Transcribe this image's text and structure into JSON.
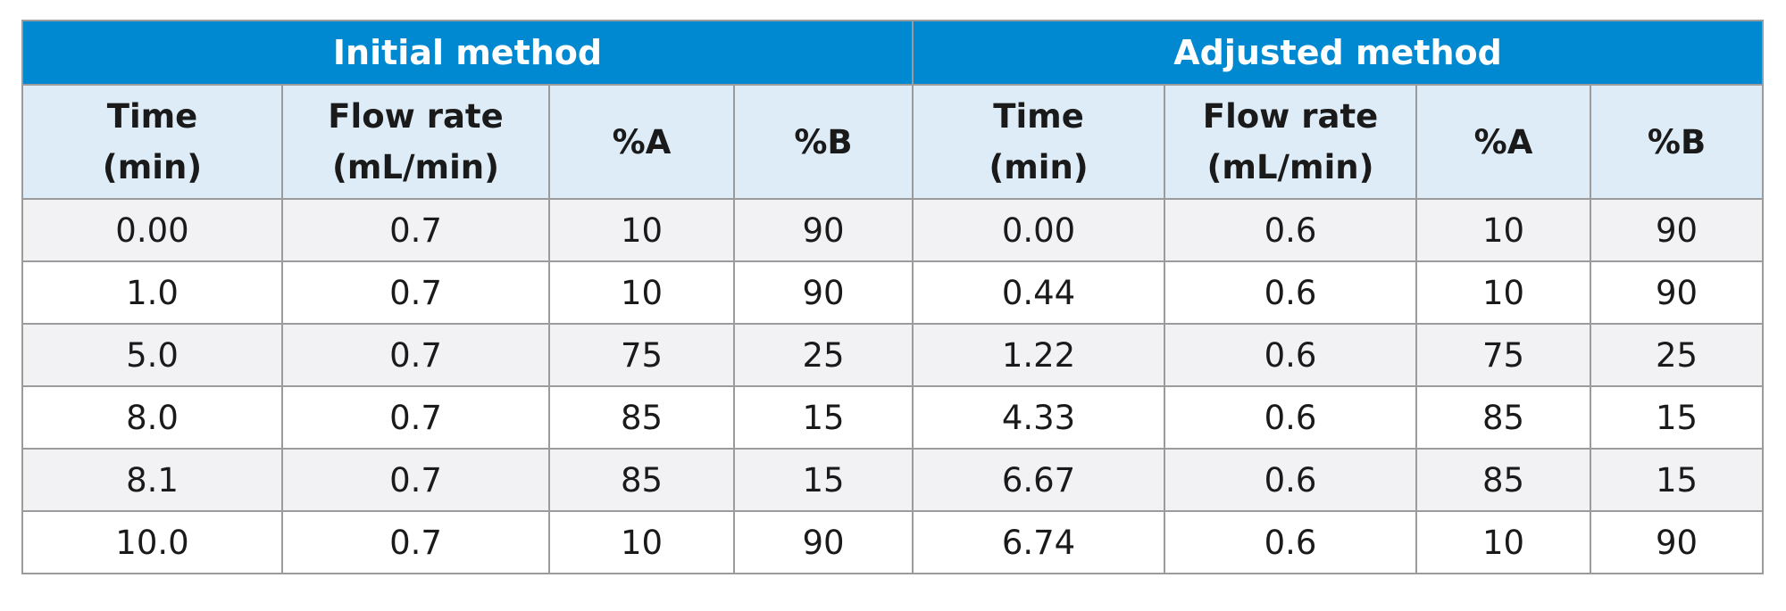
{
  "table": {
    "group_headers": [
      {
        "label": "Initial method"
      },
      {
        "label": "Adjusted method"
      }
    ],
    "columns": [
      {
        "line1": "Time",
        "line2": "(min)"
      },
      {
        "line1": "Flow rate",
        "line2": "(mL/min)"
      },
      {
        "line1": "%A",
        "line2": ""
      },
      {
        "line1": "%B",
        "line2": ""
      },
      {
        "line1": "Time",
        "line2": "(min)"
      },
      {
        "line1": "Flow rate",
        "line2": "(mL/min)"
      },
      {
        "line1": "%A",
        "line2": ""
      },
      {
        "line1": "%B",
        "line2": ""
      }
    ],
    "rows": [
      [
        "0.00",
        "0.7",
        "10",
        "90",
        "0.00",
        "0.6",
        "10",
        "90"
      ],
      [
        "1.0",
        "0.7",
        "10",
        "90",
        "0.44",
        "0.6",
        "10",
        "90"
      ],
      [
        "5.0",
        "0.7",
        "75",
        "25",
        "1.22",
        "0.6",
        "75",
        "25"
      ],
      [
        "8.0",
        "0.7",
        "85",
        "15",
        "4.33",
        "0.6",
        "85",
        "15"
      ],
      [
        "8.1",
        "0.7",
        "85",
        "15",
        "6.67",
        "0.6",
        "85",
        "15"
      ],
      [
        "10.0",
        "0.7",
        "10",
        "90",
        "6.74",
        "0.6",
        "10",
        "90"
      ]
    ]
  }
}
